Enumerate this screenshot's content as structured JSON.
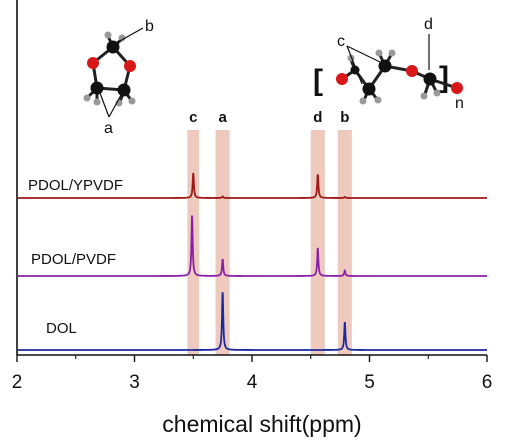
{
  "chart_data": {
    "type": "line",
    "xlabel": "chemical shift(ppm)",
    "xlim": [
      2,
      6
    ],
    "xticks": [
      "2",
      "3",
      "4",
      "5",
      "6"
    ],
    "grid": false,
    "series": [
      {
        "name": "PDOL/YPVDF",
        "color": "#a01818",
        "peaks": [
          {
            "x": 3.5,
            "height": 1.0
          },
          {
            "x": 3.75,
            "height": 0.06
          },
          {
            "x": 4.56,
            "height": 0.95
          },
          {
            "x": 4.79,
            "height": 0.04
          }
        ]
      },
      {
        "name": "PDOL/PVDF",
        "color": "#8a20a8",
        "peaks": [
          {
            "x": 3.49,
            "height": 2.2
          },
          {
            "x": 3.75,
            "height": 0.6
          },
          {
            "x": 4.56,
            "height": 1.0
          },
          {
            "x": 4.79,
            "height": 0.2
          }
        ]
      },
      {
        "name": "DOL",
        "color": "#1a2aa0",
        "peaks": [
          {
            "x": 3.75,
            "height": 2.1
          },
          {
            "x": 4.79,
            "height": 1.0
          }
        ]
      }
    ],
    "highlight_bands": [
      {
        "label": "c",
        "x": [
          3.45,
          3.55
        ]
      },
      {
        "label": "a",
        "x": [
          3.69,
          3.81
        ]
      },
      {
        "label": "d",
        "x": [
          4.5,
          4.62
        ]
      },
      {
        "label": "b",
        "x": [
          4.73,
          4.85
        ]
      }
    ],
    "band_color": "#e8b8a8",
    "annotations": {
      "dol_structure": {
        "top_label": "b",
        "bottom_label": "a"
      },
      "pdol_structure": {
        "label_c": "c",
        "label_d": "d",
        "label_n": "n",
        "open_bracket": "[",
        "close_bracket": "]"
      }
    }
  }
}
